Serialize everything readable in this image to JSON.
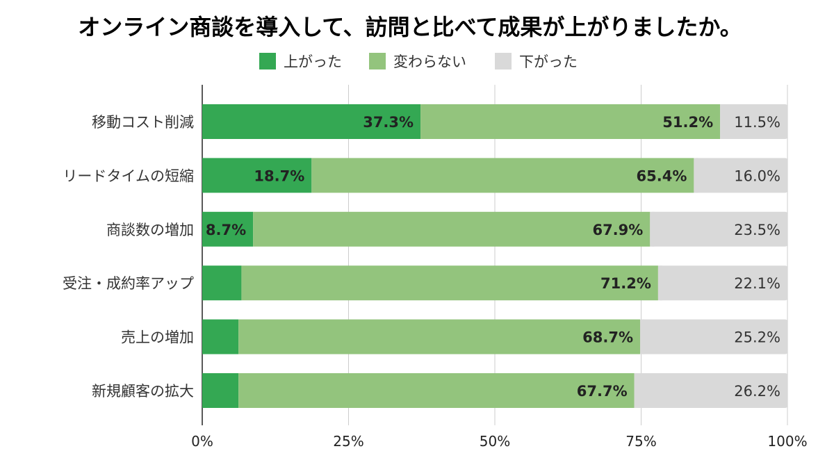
{
  "chart_data": {
    "type": "bar",
    "orientation": "horizontal",
    "stacked": true,
    "title": "オンライン商談を導入して、訪問と比べて成果が上がりましたか。",
    "legend_position": "top-center",
    "categories": [
      "移動コスト削減",
      "リードタイムの短縮",
      "商談数の増加",
      "受注・成約率アップ",
      "売上の増加",
      "新規顧客の拡大"
    ],
    "series": [
      {
        "name": "上がった",
        "color": "#34a853",
        "values": [
          37.3,
          18.7,
          8.7,
          6.7,
          6.2,
          6.2
        ],
        "labels": [
          "37.3%",
          "18.7%",
          "8.7%",
          "6.7%",
          "6.2%",
          "6.2%"
        ]
      },
      {
        "name": "変わらない",
        "color": "#93c47d",
        "values": [
          51.2,
          65.4,
          67.9,
          71.2,
          68.7,
          67.7
        ],
        "labels": [
          "51.2%",
          "65.4%",
          "67.9%",
          "71.2%",
          "68.7%",
          "67.7%"
        ]
      },
      {
        "name": "下がった",
        "color": "#d9d9d9",
        "values": [
          11.5,
          16.0,
          23.5,
          22.1,
          25.2,
          26.2
        ],
        "labels": [
          "11.5%",
          "16.0%",
          "23.5%",
          "22.1%",
          "25.2%",
          "26.2%"
        ]
      }
    ],
    "xlim": [
      0,
      100
    ],
    "x_ticks": [
      0,
      25,
      50,
      75,
      100
    ],
    "x_tick_labels": [
      "0%",
      "25%",
      "50%",
      "75%",
      "100%"
    ],
    "grid": true
  }
}
